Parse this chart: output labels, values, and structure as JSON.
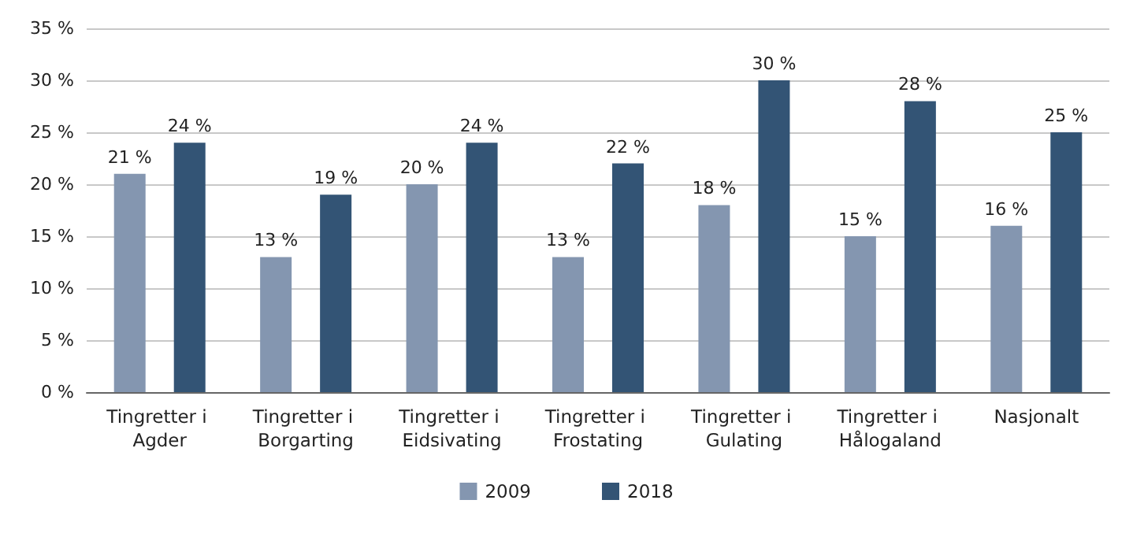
{
  "chart_data": {
    "type": "bar",
    "categories": [
      "Tingretter i Agder",
      "Tingretter i Borgarting",
      "Tingretter i Eidsivating",
      "Tingretter i Frostating",
      "Tingretter i Gulating",
      "Tingretter i Hålogaland",
      "Nasjonalt"
    ],
    "series": [
      {
        "name": "2009",
        "color": "#8496b0",
        "values": [
          21,
          13,
          20,
          13,
          18,
          15,
          16
        ],
        "value_labels": [
          "21 %",
          "13 %",
          "20 %",
          "13 %",
          "18 %",
          "15 %",
          "16 %"
        ]
      },
      {
        "name": "2018",
        "color": "#335475",
        "values": [
          24,
          19,
          24,
          22,
          30,
          28,
          25
        ],
        "value_labels": [
          "24 %",
          "19 %",
          "24 %",
          "22 %",
          "30 %",
          "28 %",
          "25 %"
        ]
      }
    ],
    "ylim": [
      0,
      35
    ],
    "yticks": [
      {
        "value": 0,
        "label": "0 %"
      },
      {
        "value": 5,
        "label": "5 %"
      },
      {
        "value": 10,
        "label": "10 %"
      },
      {
        "value": 15,
        "label": "15 %"
      },
      {
        "value": 20,
        "label": "20 %"
      },
      {
        "value": 25,
        "label": "25 %"
      },
      {
        "value": 30,
        "label": "30 %"
      },
      {
        "value": 35,
        "label": "35 %"
      }
    ],
    "grid": "y",
    "legend": "bottom"
  }
}
